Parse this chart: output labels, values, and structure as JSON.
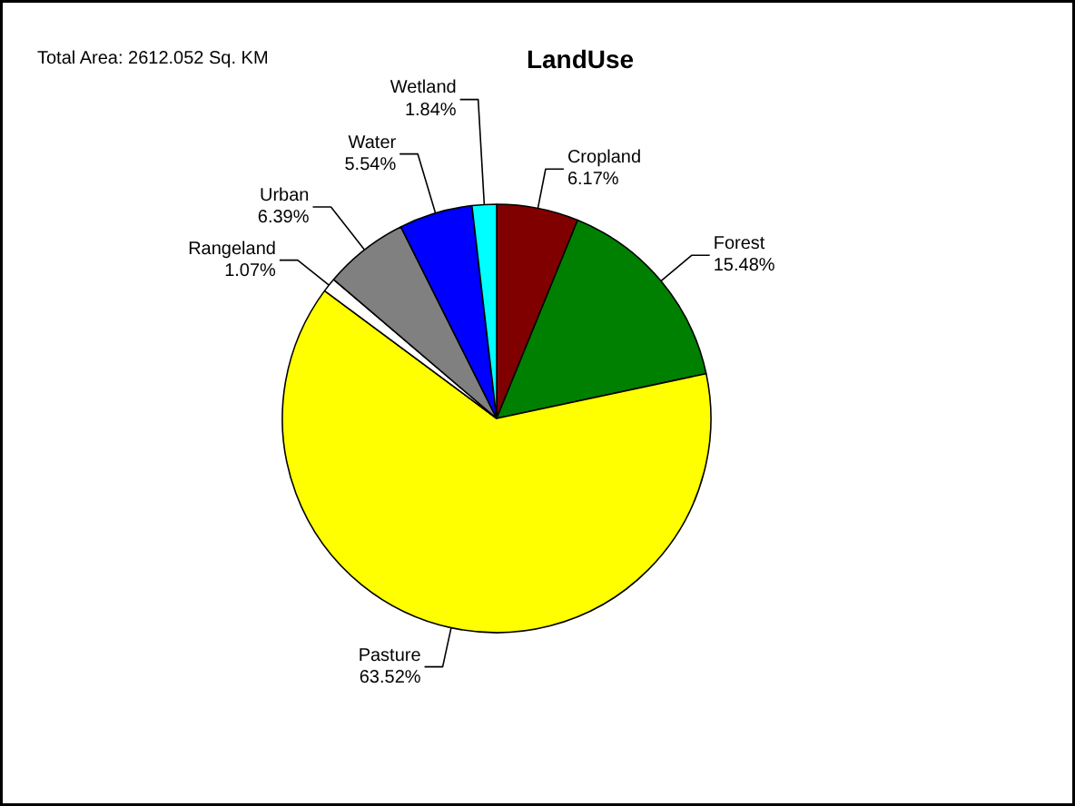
{
  "chart_data": {
    "type": "pie",
    "title": "LandUse",
    "annotations": [
      "Total Area: 2612.052 Sq. KM"
    ],
    "categories": [
      "Cropland",
      "Forest",
      "Pasture",
      "Rangeland",
      "Urban",
      "Water",
      "Wetland"
    ],
    "values": [
      6.17,
      15.48,
      63.52,
      1.07,
      6.39,
      5.54,
      1.84
    ],
    "colors": [
      "#800000",
      "#008000",
      "#ffff00",
      "#ffffff",
      "#808080",
      "#0000ff",
      "#00ffff"
    ],
    "value_labels": [
      "6.17%",
      "15.48%",
      "63.52%",
      "1.07%",
      "6.39%",
      "5.54%",
      "1.84%"
    ]
  }
}
